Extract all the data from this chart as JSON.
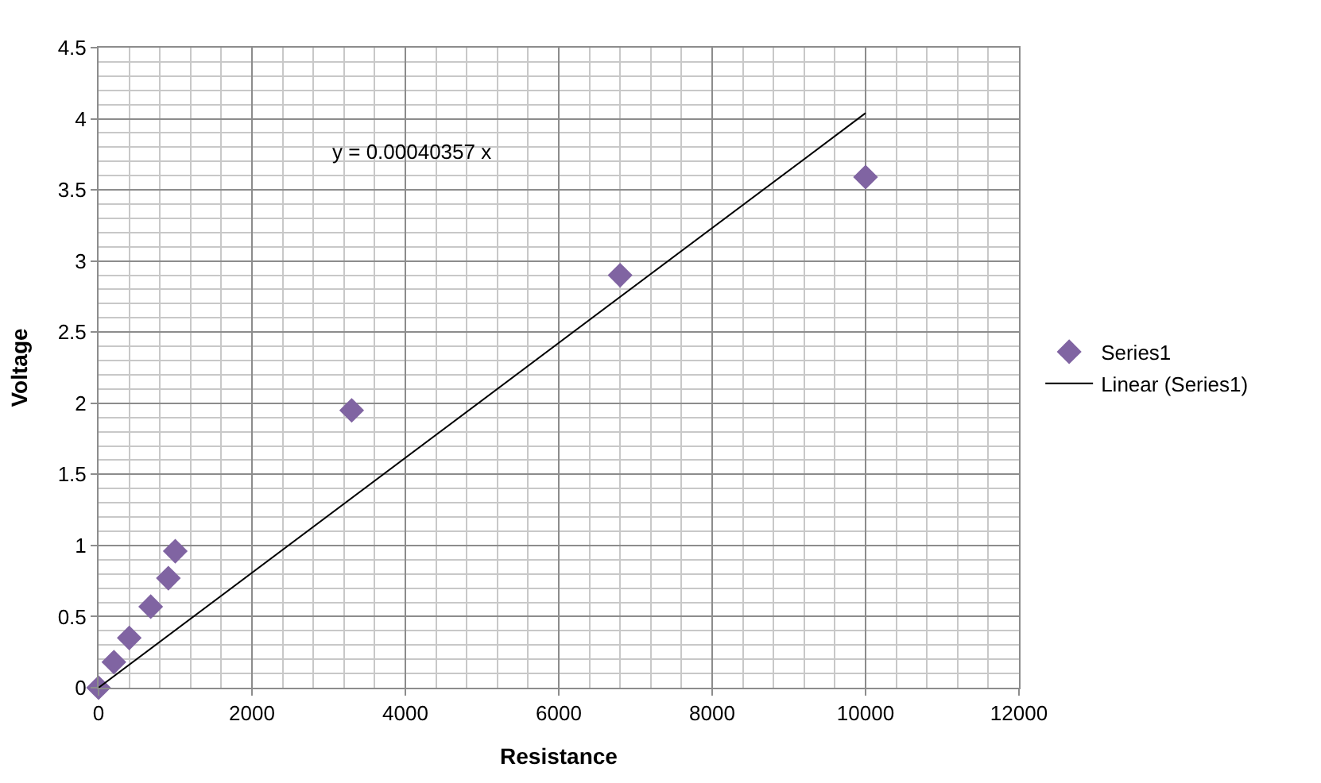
{
  "chart_data": {
    "type": "scatter",
    "xlabel": "Resistance",
    "ylabel": "Voltage",
    "series": [
      {
        "name": "Series1",
        "color": "#8064a2",
        "marker": "diamond",
        "x": [
          0,
          200,
          400,
          680,
          910,
          1000,
          3300,
          6800,
          10000
        ],
        "values": [
          0,
          0.18,
          0.35,
          0.57,
          0.77,
          0.96,
          1.95,
          2.9,
          3.59
        ]
      },
      {
        "name": "Linear (Series1)",
        "type": "line",
        "color": "#000000",
        "marker": "none",
        "x": [
          0,
          10000
        ],
        "values": [
          0,
          4.04
        ]
      }
    ],
    "annotations": [
      "y = 0.00040357 x"
    ],
    "xlim": [
      0,
      12000
    ],
    "xticks": [
      0,
      2000,
      4000,
      6000,
      8000,
      10000,
      12000
    ],
    "ylim": [
      0,
      4.5
    ],
    "yticks": [
      0,
      0.5,
      1,
      1.5,
      2,
      2.5,
      3,
      3.5,
      4,
      4.5
    ],
    "grid": true,
    "legend": "right"
  }
}
